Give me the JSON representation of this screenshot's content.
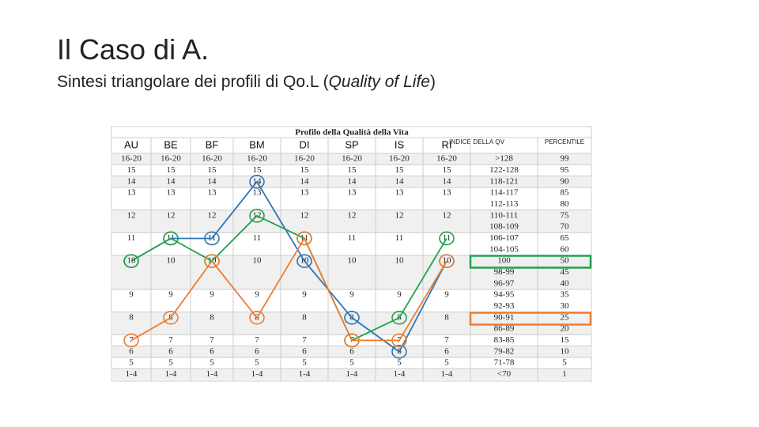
{
  "title": "Il Caso di A.",
  "subtitle": {
    "before": "Sintesi triangolare dei profili di Qo.L (",
    "italic": "Quality of Life",
    "after": ")"
  },
  "table": {
    "caption": "Profilo della Qualità della Vita",
    "columns": [
      "AU",
      "BE",
      "BF",
      "BM",
      "DI",
      "SP",
      "IS",
      "RI"
    ],
    "index_header": "INDICE DELLA QV",
    "percentile_header": "PERCENTILE",
    "rows": [
      {
        "score": "16-20",
        "index": [
          ">128"
        ],
        "percentile": [
          "99"
        ]
      },
      {
        "score": "15",
        "index": [
          "122-128"
        ],
        "percentile": [
          "95"
        ]
      },
      {
        "score": "14",
        "index": [
          "118-121"
        ],
        "percentile": [
          "90"
        ]
      },
      {
        "score": "13",
        "index": [
          "114-117",
          "112-113"
        ],
        "percentile": [
          "85",
          "80"
        ]
      },
      {
        "score": "12",
        "index": [
          "110-111",
          "108-109"
        ],
        "percentile": [
          "75",
          "70"
        ]
      },
      {
        "score": "11",
        "index": [
          "106-107",
          "104-105"
        ],
        "percentile": [
          "65",
          "60"
        ]
      },
      {
        "score": "10",
        "index": [
          "100",
          "98-99",
          "96-97"
        ],
        "percentile": [
          "50",
          "45",
          "40"
        ]
      },
      {
        "score": "9",
        "index": [
          "94-95",
          "92-93"
        ],
        "percentile": [
          "35",
          "30"
        ]
      },
      {
        "score": "8",
        "index": [
          "90-91",
          "86-89"
        ],
        "percentile": [
          "25",
          "20"
        ]
      },
      {
        "score": "7",
        "index": [
          "83-85"
        ],
        "percentile": [
          "15"
        ]
      },
      {
        "score": "6",
        "index": [
          "79-82"
        ],
        "percentile": [
          "10"
        ]
      },
      {
        "score": "5",
        "index": [
          "71-78"
        ],
        "percentile": [
          "5"
        ]
      },
      {
        "score": "1-4",
        "index": [
          "<70"
        ],
        "percentile": [
          "1"
        ]
      }
    ]
  },
  "profiles": [
    {
      "color": "#2e75b6",
      "values": [
        10,
        11,
        11,
        14,
        10,
        8,
        6,
        10
      ]
    },
    {
      "color": "#1fa34a",
      "values": [
        10,
        11,
        10,
        12,
        11,
        7,
        8,
        11
      ]
    },
    {
      "color": "#ed7d31",
      "values": [
        7,
        8,
        10,
        8,
        11,
        7,
        7,
        10
      ]
    }
  ]
}
